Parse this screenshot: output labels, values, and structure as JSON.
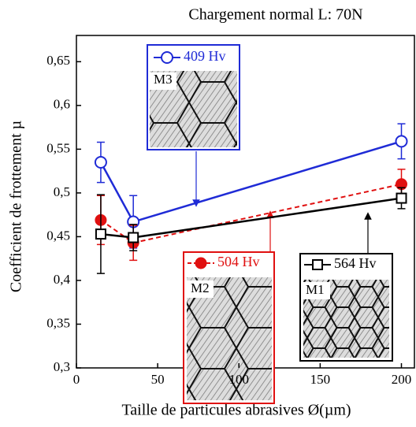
{
  "chart_data": {
    "type": "line",
    "title": "Chargement normal L: 70N",
    "x_label": "Taille de particules abrasives Ø(µm)",
    "y_label": "Coefficient de frottement µ",
    "x": [
      15,
      35,
      200
    ],
    "xlim": [
      0,
      208
    ],
    "xticks": [
      0,
      50,
      100,
      150,
      200
    ],
    "ylim": [
      0.3,
      0.68
    ],
    "yticks": [
      {
        "value": 0.3,
        "label": "0,3"
      },
      {
        "value": 0.35,
        "label": "0,35"
      },
      {
        "value": 0.4,
        "label": "0,4"
      },
      {
        "value": 0.45,
        "label": "0,45"
      },
      {
        "value": 0.5,
        "label": "0,5"
      },
      {
        "value": 0.55,
        "label": "0,55"
      },
      {
        "value": 0.6,
        "label": "0,6"
      },
      {
        "value": 0.65,
        "label": "0,65"
      }
    ],
    "series": [
      {
        "name": "409 Hv",
        "color": "#1f2bd6",
        "marker": "open-circle",
        "dashed": false,
        "values": [
          0.535,
          0.467,
          0.559
        ],
        "errors": [
          0.023,
          0.03,
          0.02
        ]
      },
      {
        "name": "504 Hv",
        "color": "#e01010",
        "marker": "filled-circle",
        "dashed": true,
        "values": [
          0.469,
          0.443,
          0.51
        ],
        "errors": [
          0.028,
          0.02,
          0.017
        ]
      },
      {
        "name": "564 Hv",
        "color": "#000000",
        "marker": "open-square",
        "dashed": false,
        "values": [
          0.453,
          0.449,
          0.494
        ],
        "errors": [
          0.045,
          0.015,
          0.012
        ]
      }
    ],
    "inset_labels": [
      "M3",
      "M2",
      "M1"
    ]
  }
}
